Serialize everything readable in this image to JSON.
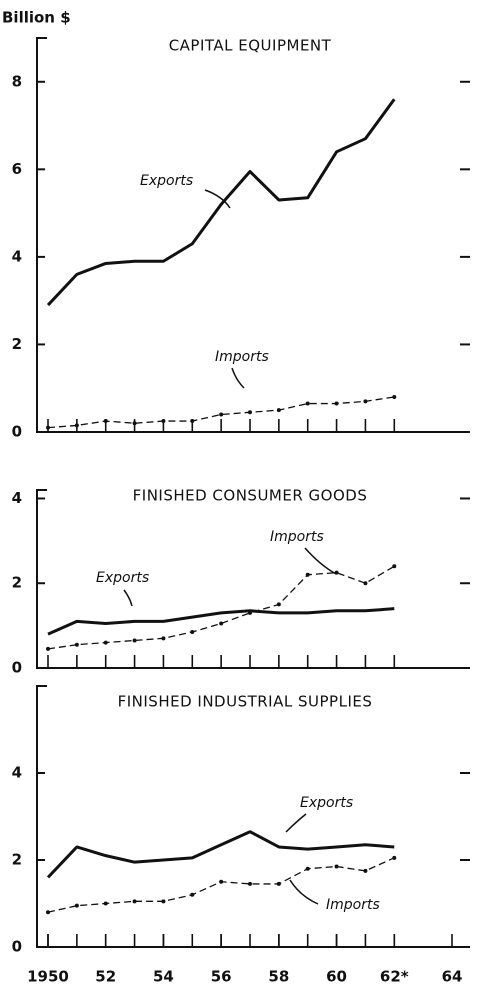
{
  "chart_data": [
    {
      "type": "line",
      "title": "CAPITAL EQUIPMENT",
      "y_label": "Billion $",
      "x": [
        1950,
        1951,
        1952,
        1953,
        1954,
        1955,
        1956,
        1957,
        1958,
        1959,
        1960,
        1961,
        1962
      ],
      "series": [
        {
          "name": "Exports",
          "color": "#111111",
          "values": [
            2.9,
            3.6,
            3.85,
            3.9,
            3.9,
            4.3,
            5.2,
            5.95,
            5.3,
            5.35,
            6.4,
            6.7,
            7.6
          ]
        },
        {
          "name": "Imports",
          "color": "#111111",
          "values": [
            0.1,
            0.15,
            0.25,
            0.2,
            0.25,
            0.25,
            0.4,
            0.45,
            0.5,
            0.65,
            0.65,
            0.7,
            0.8
          ]
        }
      ],
      "xlim": [
        1950,
        1964
      ],
      "ylim": [
        0,
        9
      ],
      "yticks": [
        0,
        2,
        4,
        6,
        8
      ]
    },
    {
      "type": "line",
      "title": "FINISHED CONSUMER GOODS",
      "x": [
        1950,
        1951,
        1952,
        1953,
        1954,
        1955,
        1956,
        1957,
        1958,
        1959,
        1960,
        1961,
        1962
      ],
      "series": [
        {
          "name": "Exports",
          "color": "#111111",
          "values": [
            0.8,
            1.1,
            1.05,
            1.1,
            1.1,
            1.2,
            1.3,
            1.35,
            1.3,
            1.3,
            1.35,
            1.35,
            1.4
          ]
        },
        {
          "name": "Imports",
          "color": "#111111",
          "values": [
            0.45,
            0.55,
            0.6,
            0.65,
            0.7,
            0.85,
            1.05,
            1.3,
            1.5,
            2.2,
            2.25,
            2.0,
            2.4
          ]
        }
      ],
      "xlim": [
        1950,
        1964
      ],
      "ylim": [
        0,
        4.2
      ],
      "yticks": [
        0,
        2,
        4
      ]
    },
    {
      "type": "line",
      "title": "FINISHED INDUSTRIAL SUPPLIES",
      "x": [
        1950,
        1951,
        1952,
        1953,
        1954,
        1955,
        1956,
        1957,
        1958,
        1959,
        1960,
        1961,
        1962
      ],
      "series": [
        {
          "name": "Exports",
          "color": "#111111",
          "values": [
            1.6,
            2.3,
            2.1,
            1.95,
            2.0,
            2.05,
            2.35,
            2.65,
            2.3,
            2.25,
            2.3,
            2.35,
            2.3
          ]
        },
        {
          "name": "Imports",
          "color": "#111111",
          "values": [
            0.8,
            0.95,
            1.0,
            1.05,
            1.05,
            1.2,
            1.5,
            1.45,
            1.45,
            1.8,
            1.85,
            1.75,
            2.05
          ]
        }
      ],
      "xlim": [
        1950,
        1964
      ],
      "ylim": [
        0,
        6
      ],
      "yticks": [
        0,
        2,
        4
      ],
      "xticks": [
        1950,
        {
          "value": 1952,
          "label": "52"
        },
        {
          "value": 1954,
          "label": "54"
        },
        {
          "value": 1956,
          "label": "56"
        },
        {
          "value": 1958,
          "label": "58"
        },
        {
          "value": 1960,
          "label": "60"
        },
        {
          "value": 1962,
          "label": "62*"
        },
        {
          "value": 1964,
          "label": "64"
        }
      ]
    }
  ]
}
